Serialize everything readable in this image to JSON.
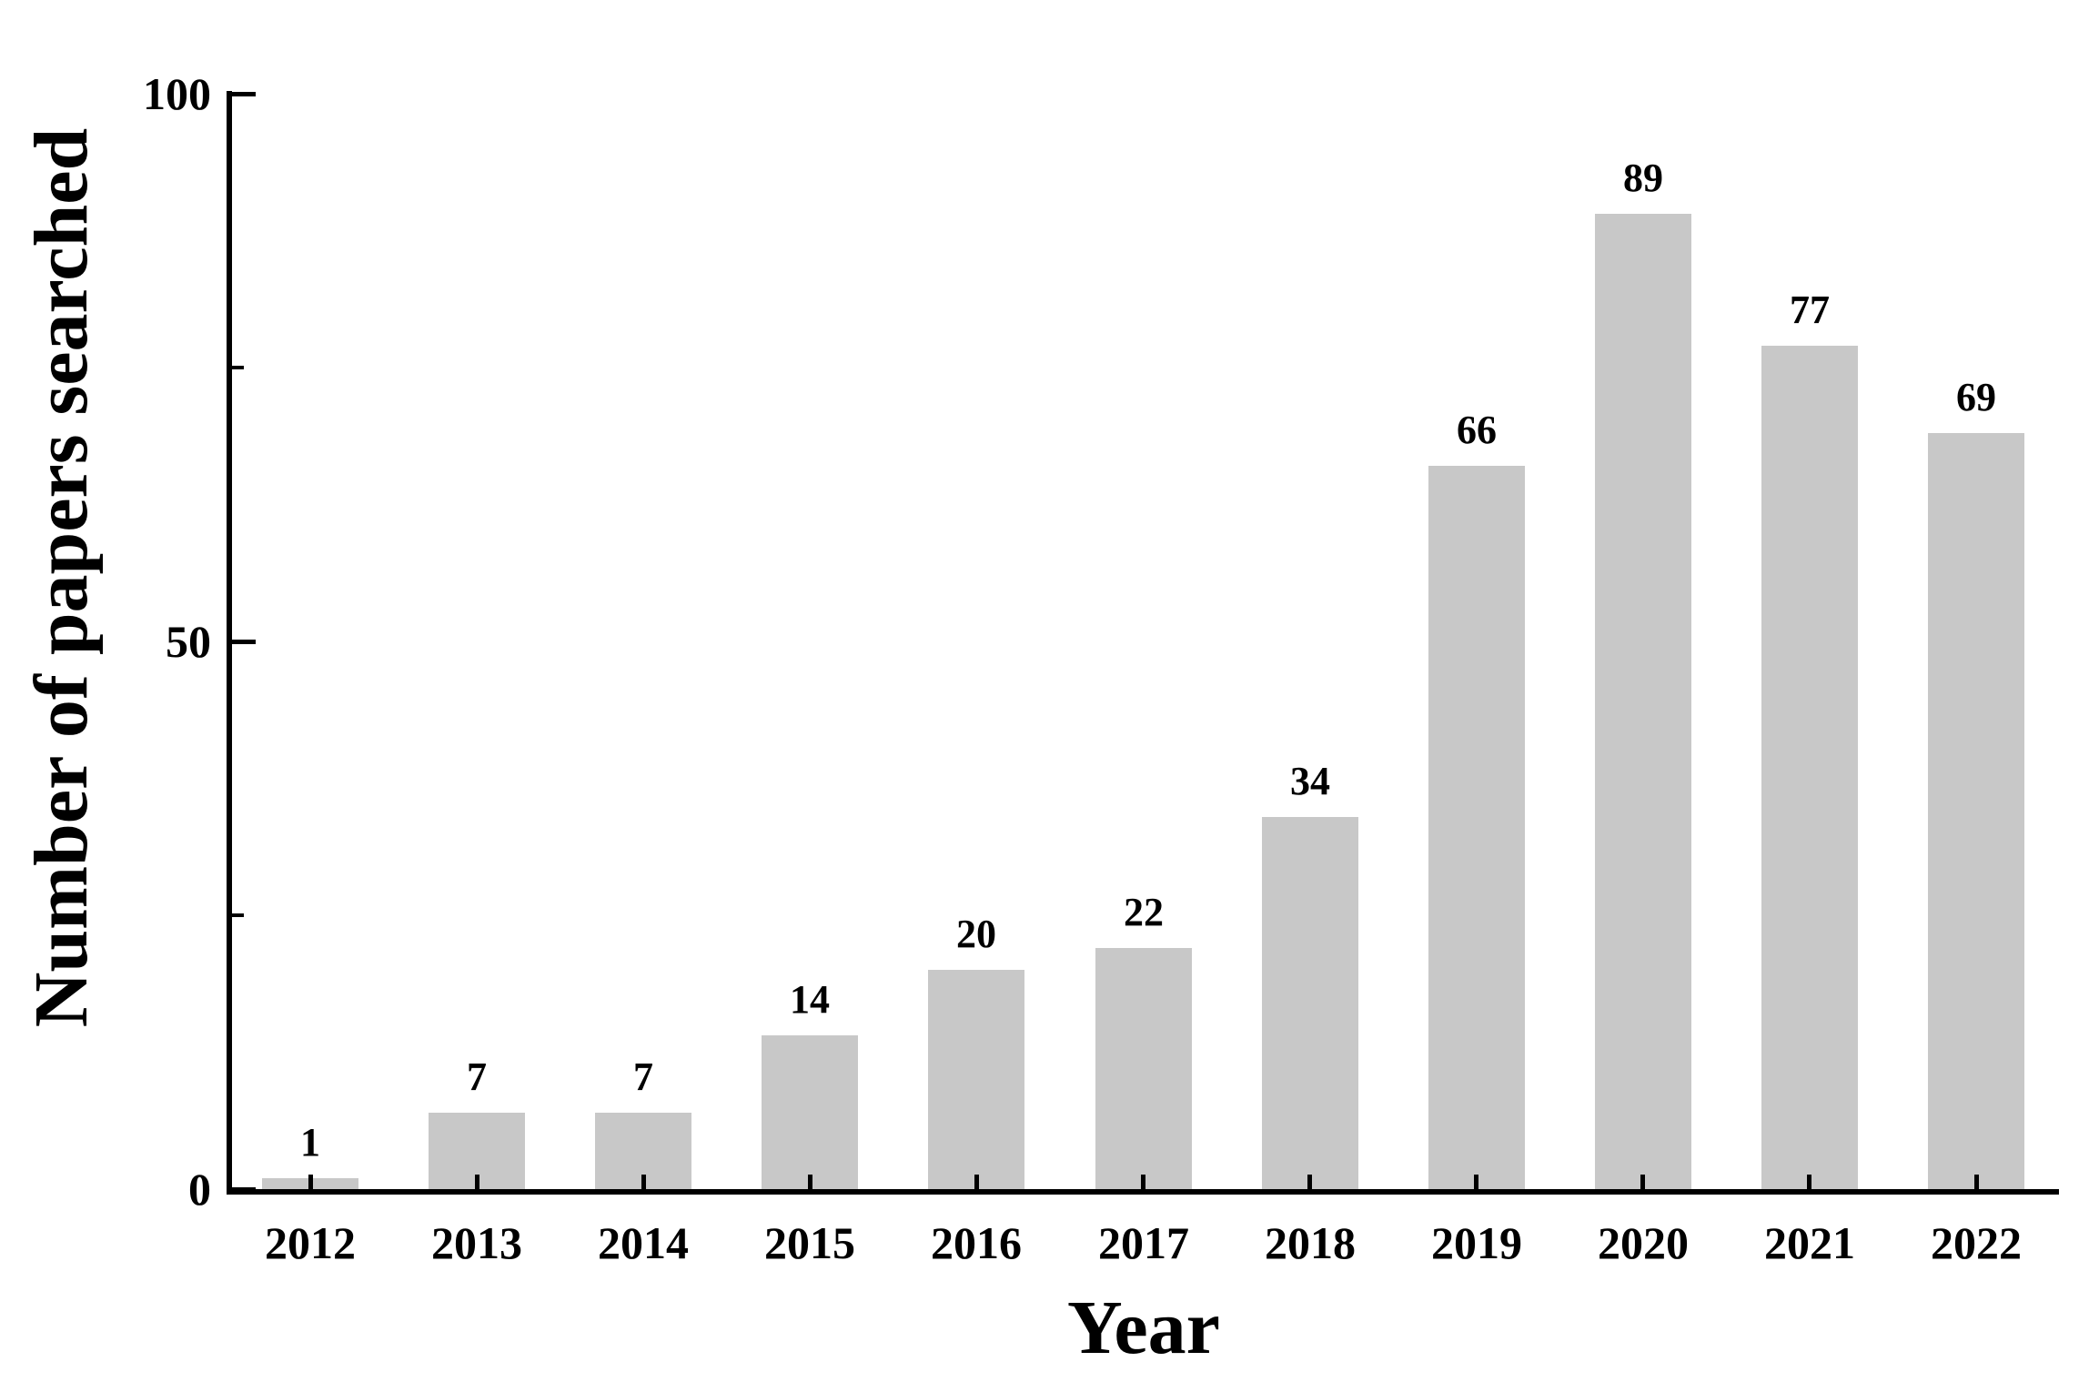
{
  "figure": {
    "background": "#ffffff",
    "text_color": "#000000"
  },
  "chart_data": {
    "type": "bar",
    "title": "",
    "xlabel": "Year",
    "ylabel": "Number of papers searched",
    "categories": [
      "2012",
      "2013",
      "2014",
      "2015",
      "2016",
      "2017",
      "2018",
      "2019",
      "2020",
      "2021",
      "2022"
    ],
    "values": [
      1,
      7,
      7,
      14,
      20,
      22,
      34,
      66,
      89,
      77,
      69
    ],
    "bar_labels": [
      "1",
      "7",
      "7",
      "14",
      "20",
      "22",
      "34",
      "66",
      "89",
      "77",
      "69"
    ],
    "ylim": [
      0,
      100
    ],
    "yticks": [
      {
        "value": 0,
        "label": "0"
      },
      {
        "value": 50,
        "label": "50"
      },
      {
        "value": 100,
        "label": "100"
      }
    ],
    "y_minor_ticks": [
      25,
      75
    ],
    "bar_color": "#c8c8c8",
    "axis_color": "#000000",
    "grid": "off",
    "legend": "none"
  }
}
